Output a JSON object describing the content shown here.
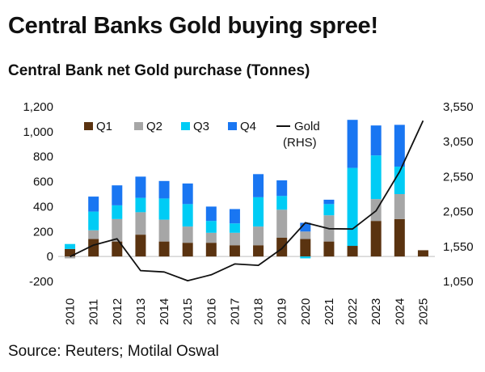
{
  "chart_data": {
    "type": "bar",
    "stacked": true,
    "title": "Central Banks Gold buying spree!",
    "subtitle": "Central Bank net Gold purchase (Tonnes)",
    "source": "Source: Reuters; Motilal Oswal",
    "categories": [
      "2010",
      "2011",
      "2012",
      "2013",
      "2014",
      "2015",
      "2016",
      "2017",
      "2018",
      "2019",
      "2020",
      "2021",
      "2022",
      "2023",
      "2024",
      "2025"
    ],
    "series": [
      {
        "name": "Q1",
        "color": "#5a3310",
        "values": [
          60,
          140,
          120,
          175,
          120,
          110,
          110,
          90,
          90,
          150,
          140,
          120,
          85,
          285,
          300,
          50
        ]
      },
      {
        "name": "Q2",
        "color": "#a6a6a6",
        "values": [
          -15,
          70,
          180,
          180,
          175,
          130,
          80,
          100,
          150,
          225,
          60,
          210,
          0,
          175,
          200,
          0
        ]
      },
      {
        "name": "Q3",
        "color": "#00ccf5",
        "values": [
          40,
          150,
          110,
          115,
          170,
          180,
          95,
          75,
          235,
          110,
          -15,
          90,
          625,
          350,
          220,
          0
        ]
      },
      {
        "name": "Q4",
        "color": "#1976f2",
        "values": [
          0,
          120,
          160,
          170,
          140,
          165,
          115,
          115,
          185,
          125,
          70,
          35,
          385,
          240,
          335,
          0
        ]
      }
    ],
    "line_series": {
      "name": "Gold (RHS)",
      "axis": "right",
      "color": "#111111",
      "values": [
        1405,
        1570,
        1660,
        1205,
        1185,
        1060,
        1145,
        1300,
        1280,
        1520,
        1890,
        1805,
        1800,
        2060,
        2620,
        3350
      ]
    },
    "y_left": {
      "min": -200,
      "max": 1200,
      "ticks": [
        "-200",
        "0",
        "200",
        "400",
        "600",
        "800",
        "1,000",
        "1,200"
      ]
    },
    "y_right": {
      "min": 1050,
      "max": 3550,
      "ticks": [
        "1,050",
        "1,550",
        "2,050",
        "2,550",
        "3,050",
        "3,550"
      ]
    },
    "legend": {
      "position": "top-left",
      "items": [
        "Q1",
        "Q2",
        "Q3",
        "Q4",
        "Gold (RHS)"
      ]
    }
  }
}
